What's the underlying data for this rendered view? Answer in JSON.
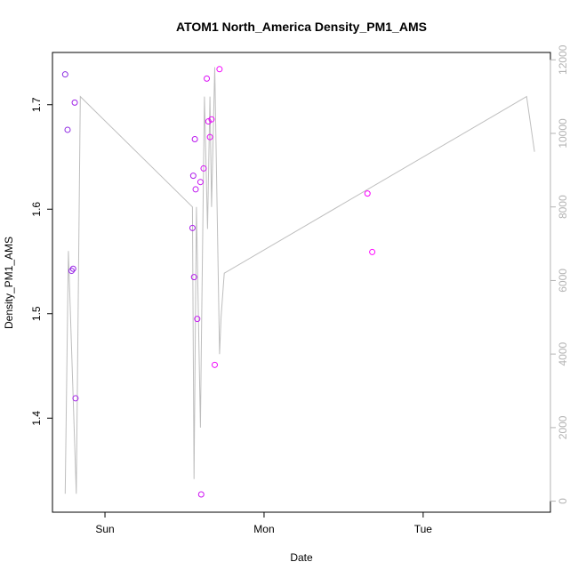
{
  "chart_data": {
    "type": "scatter",
    "title": "ATOM1 North_America Density_PM1_AMS",
    "xlabel": "Date",
    "ylabel": "Density_PM1_AMS",
    "x_ticks": [
      "Sun",
      "Mon",
      "Tue"
    ],
    "x_tick_values": [
      1,
      2,
      3
    ],
    "xlim": [
      0.67,
      3.8
    ],
    "ylim": [
      1.31,
      1.75
    ],
    "y_ticks": [
      1.4,
      1.5,
      1.6,
      1.7
    ],
    "y_tick_labels": [
      "1.4",
      "1.5",
      "1.6",
      "1.7"
    ],
    "y2lim": [
      -300,
      12200
    ],
    "y2_ticks": [
      0,
      2000,
      4000,
      6000,
      8000,
      10000,
      12000
    ],
    "y2_tick_labels": [
      "0",
      "2000",
      "4000",
      "6000",
      "8000",
      "10000",
      "12000"
    ],
    "grid": false,
    "colors": {
      "point_early": "#8a2be2",
      "point_late": "#ff00ff",
      "line": "#bebebe",
      "right_axis": "#b3b3b3"
    },
    "series": [
      {
        "kind": "points",
        "x": [
          0.75,
          0.765,
          0.79,
          0.8,
          0.81,
          0.815,
          1.55,
          1.555,
          1.56,
          1.565,
          1.57,
          1.58,
          1.6,
          1.605,
          1.62,
          1.64,
          1.65,
          1.66,
          1.67,
          1.69,
          1.72,
          2.65,
          2.68
        ],
        "y": [
          1.729,
          1.676,
          1.541,
          1.543,
          1.702,
          1.419,
          1.582,
          1.632,
          1.535,
          1.667,
          1.619,
          1.495,
          1.626,
          1.327,
          1.639,
          1.725,
          1.684,
          1.669,
          1.686,
          1.451,
          1.734,
          1.615,
          1.559
        ]
      },
      {
        "kind": "line",
        "axis": "right",
        "x": [
          0.75,
          0.77,
          0.82,
          0.845,
          1.55,
          1.56,
          1.575,
          1.6,
          1.605,
          1.625,
          1.645,
          1.66,
          1.67,
          1.69,
          1.72,
          1.73,
          1.75,
          3.65,
          3.7
        ],
        "y": [
          200,
          6800,
          200,
          11000,
          8000,
          600,
          8000,
          2000,
          4000,
          11000,
          7400,
          11000,
          8000,
          11800,
          4000,
          5000,
          6200,
          11000,
          9500
        ]
      }
    ]
  }
}
